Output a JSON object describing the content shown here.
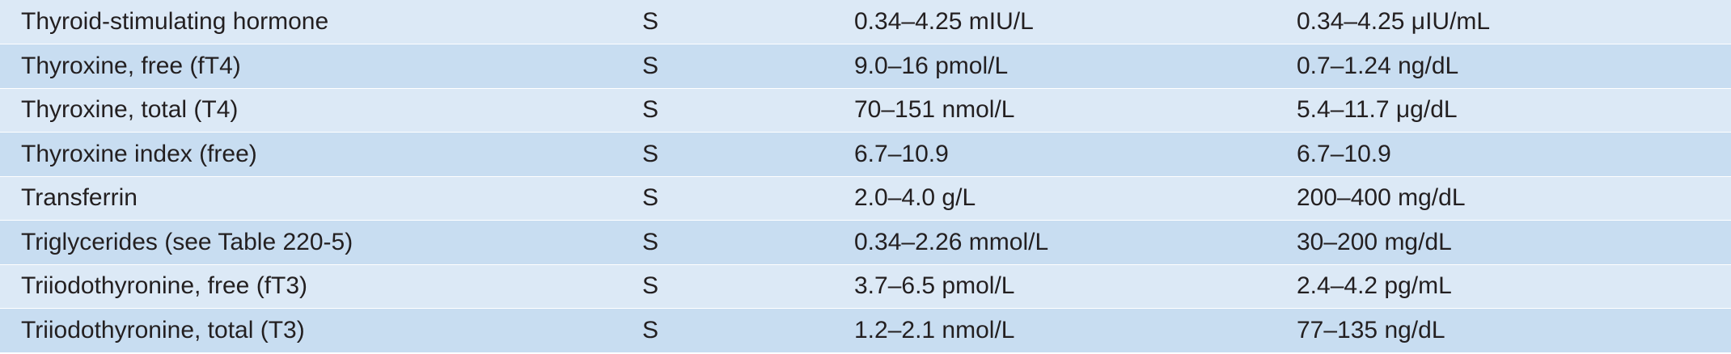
{
  "rows": [
    {
      "analyte": "Thyroid-stimulating hormone",
      "specimen": "S",
      "si_units": "0.34–4.25 mIU/L",
      "conventional_units": "0.34–4.25 μIU/mL"
    },
    {
      "analyte": "Thyroxine, free (fT4)",
      "specimen": "S",
      "si_units": "9.0–16 pmol/L",
      "conventional_units": "0.7–1.24 ng/dL"
    },
    {
      "analyte": "Thyroxine, total (T4)",
      "specimen": "S",
      "si_units": "70–151 nmol/L",
      "conventional_units": "5.4–11.7 μg/dL"
    },
    {
      "analyte": "Thyroxine index (free)",
      "specimen": "S",
      "si_units": "6.7–10.9",
      "conventional_units": "6.7–10.9"
    },
    {
      "analyte": "Transferrin",
      "specimen": "S",
      "si_units": "2.0–4.0 g/L",
      "conventional_units": "200–400 mg/dL"
    },
    {
      "analyte": "Triglycerides (see Table 220-5)",
      "specimen": "S",
      "si_units": "0.34–2.26 mmol/L",
      "conventional_units": "30–200 mg/dL"
    },
    {
      "analyte": "Triiodothyronine, free (fT3)",
      "specimen": "S",
      "si_units": "3.7–6.5 pmol/L",
      "conventional_units": "2.4–4.2 pg/mL"
    },
    {
      "analyte": "Triiodothyronine, total (T3)",
      "specimen": "S",
      "si_units": "1.2–2.1 nmol/L",
      "conventional_units": "77–135 ng/dL"
    }
  ],
  "colors": {
    "row_light": "#dce9f6",
    "row_dark": "#c8ddf1",
    "text": "#231f20"
  }
}
